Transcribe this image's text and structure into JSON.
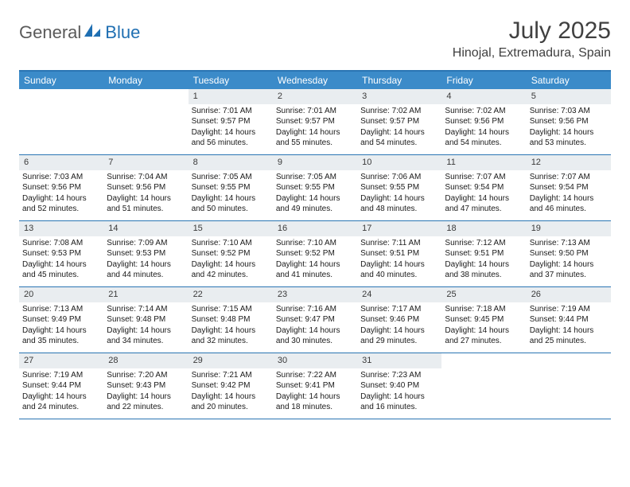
{
  "brand": {
    "word1": "General",
    "word2": "Blue"
  },
  "colors": {
    "header_bg": "#3b8bc9",
    "header_border": "#2a75b3",
    "daynum_bg": "#e9edf0",
    "text": "#404040",
    "brand_blue": "#1f6fb2"
  },
  "typography": {
    "body_pt": 10,
    "daynum_pt": 11,
    "weekday_pt": 12,
    "title_pt": 30,
    "location_pt": 16
  },
  "title": "July 2025",
  "location": "Hinojal, Extremadura, Spain",
  "weekdays": [
    "Sunday",
    "Monday",
    "Tuesday",
    "Wednesday",
    "Thursday",
    "Friday",
    "Saturday"
  ],
  "weeks": [
    [
      null,
      null,
      {
        "n": "1",
        "sr": "7:01 AM",
        "ss": "9:57 PM",
        "dl": "14 hours and 56 minutes."
      },
      {
        "n": "2",
        "sr": "7:01 AM",
        "ss": "9:57 PM",
        "dl": "14 hours and 55 minutes."
      },
      {
        "n": "3",
        "sr": "7:02 AM",
        "ss": "9:57 PM",
        "dl": "14 hours and 54 minutes."
      },
      {
        "n": "4",
        "sr": "7:02 AM",
        "ss": "9:56 PM",
        "dl": "14 hours and 54 minutes."
      },
      {
        "n": "5",
        "sr": "7:03 AM",
        "ss": "9:56 PM",
        "dl": "14 hours and 53 minutes."
      }
    ],
    [
      {
        "n": "6",
        "sr": "7:03 AM",
        "ss": "9:56 PM",
        "dl": "14 hours and 52 minutes."
      },
      {
        "n": "7",
        "sr": "7:04 AM",
        "ss": "9:56 PM",
        "dl": "14 hours and 51 minutes."
      },
      {
        "n": "8",
        "sr": "7:05 AM",
        "ss": "9:55 PM",
        "dl": "14 hours and 50 minutes."
      },
      {
        "n": "9",
        "sr": "7:05 AM",
        "ss": "9:55 PM",
        "dl": "14 hours and 49 minutes."
      },
      {
        "n": "10",
        "sr": "7:06 AM",
        "ss": "9:55 PM",
        "dl": "14 hours and 48 minutes."
      },
      {
        "n": "11",
        "sr": "7:07 AM",
        "ss": "9:54 PM",
        "dl": "14 hours and 47 minutes."
      },
      {
        "n": "12",
        "sr": "7:07 AM",
        "ss": "9:54 PM",
        "dl": "14 hours and 46 minutes."
      }
    ],
    [
      {
        "n": "13",
        "sr": "7:08 AM",
        "ss": "9:53 PM",
        "dl": "14 hours and 45 minutes."
      },
      {
        "n": "14",
        "sr": "7:09 AM",
        "ss": "9:53 PM",
        "dl": "14 hours and 44 minutes."
      },
      {
        "n": "15",
        "sr": "7:10 AM",
        "ss": "9:52 PM",
        "dl": "14 hours and 42 minutes."
      },
      {
        "n": "16",
        "sr": "7:10 AM",
        "ss": "9:52 PM",
        "dl": "14 hours and 41 minutes."
      },
      {
        "n": "17",
        "sr": "7:11 AM",
        "ss": "9:51 PM",
        "dl": "14 hours and 40 minutes."
      },
      {
        "n": "18",
        "sr": "7:12 AM",
        "ss": "9:51 PM",
        "dl": "14 hours and 38 minutes."
      },
      {
        "n": "19",
        "sr": "7:13 AM",
        "ss": "9:50 PM",
        "dl": "14 hours and 37 minutes."
      }
    ],
    [
      {
        "n": "20",
        "sr": "7:13 AM",
        "ss": "9:49 PM",
        "dl": "14 hours and 35 minutes."
      },
      {
        "n": "21",
        "sr": "7:14 AM",
        "ss": "9:48 PM",
        "dl": "14 hours and 34 minutes."
      },
      {
        "n": "22",
        "sr": "7:15 AM",
        "ss": "9:48 PM",
        "dl": "14 hours and 32 minutes."
      },
      {
        "n": "23",
        "sr": "7:16 AM",
        "ss": "9:47 PM",
        "dl": "14 hours and 30 minutes."
      },
      {
        "n": "24",
        "sr": "7:17 AM",
        "ss": "9:46 PM",
        "dl": "14 hours and 29 minutes."
      },
      {
        "n": "25",
        "sr": "7:18 AM",
        "ss": "9:45 PM",
        "dl": "14 hours and 27 minutes."
      },
      {
        "n": "26",
        "sr": "7:19 AM",
        "ss": "9:44 PM",
        "dl": "14 hours and 25 minutes."
      }
    ],
    [
      {
        "n": "27",
        "sr": "7:19 AM",
        "ss": "9:44 PM",
        "dl": "14 hours and 24 minutes."
      },
      {
        "n": "28",
        "sr": "7:20 AM",
        "ss": "9:43 PM",
        "dl": "14 hours and 22 minutes."
      },
      {
        "n": "29",
        "sr": "7:21 AM",
        "ss": "9:42 PM",
        "dl": "14 hours and 20 minutes."
      },
      {
        "n": "30",
        "sr": "7:22 AM",
        "ss": "9:41 PM",
        "dl": "14 hours and 18 minutes."
      },
      {
        "n": "31",
        "sr": "7:23 AM",
        "ss": "9:40 PM",
        "dl": "14 hours and 16 minutes."
      },
      null,
      null
    ]
  ],
  "labels": {
    "sunrise": "Sunrise: ",
    "sunset": "Sunset: ",
    "daylight": "Daylight: "
  }
}
